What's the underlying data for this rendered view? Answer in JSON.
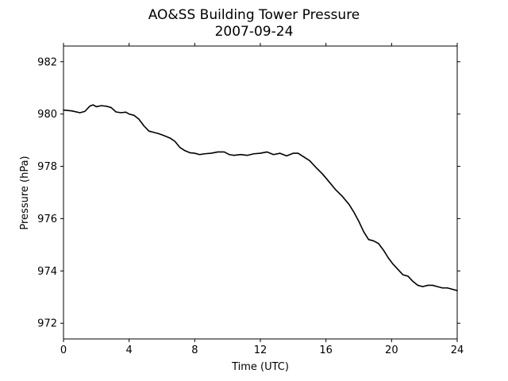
{
  "chart_data": {
    "type": "line",
    "title": "AO&SS Building Tower Pressure",
    "subtitle": "2007-09-24",
    "xlabel": "Time (UTC)",
    "ylabel": "Pressure (hPa)",
    "xlim": [
      0,
      24
    ],
    "ylim": [
      971.4,
      982.6
    ],
    "xticks": [
      0,
      4,
      8,
      12,
      16,
      20,
      24
    ],
    "xtick_labels": [
      "0",
      "4",
      "8",
      "12",
      "16",
      "20",
      "24"
    ],
    "yticks": [
      972,
      974,
      976,
      978,
      980,
      982
    ],
    "ytick_labels": [
      "972",
      "974",
      "976",
      "978",
      "980",
      "982"
    ],
    "grid": false,
    "line_color": "#000000",
    "series": [
      {
        "x": [
          0,
          0.5,
          1.0,
          1.3,
          1.6,
          1.8,
          2.0,
          2.3,
          2.6,
          2.9,
          3.2,
          3.5,
          3.8,
          4.0,
          4.3,
          4.6,
          4.9,
          5.2,
          5.5,
          5.8,
          6.1,
          6.5,
          6.8,
          7.1,
          7.4,
          7.7,
          8.0,
          8.3,
          8.6,
          9.0,
          9.4,
          9.8,
          10.1,
          10.4,
          10.8,
          11.2,
          11.6,
          12.0,
          12.4,
          12.8,
          13.2,
          13.6,
          14.0,
          14.3,
          14.6,
          15.0,
          15.4,
          15.8,
          16.2,
          16.6,
          17.0,
          17.4,
          17.7,
          18.0,
          18.3,
          18.6,
          18.9,
          19.2,
          19.5,
          19.8,
          20.1,
          20.4,
          20.7,
          21.0,
          21.3,
          21.6,
          21.9,
          22.2,
          22.5,
          22.8,
          23.1,
          23.4,
          23.7,
          24.0
        ],
        "y": [
          980.15,
          980.12,
          980.05,
          980.1,
          980.3,
          980.35,
          980.28,
          980.32,
          980.3,
          980.25,
          980.08,
          980.05,
          980.07,
          980.0,
          979.95,
          979.8,
          979.55,
          979.35,
          979.3,
          979.25,
          979.18,
          979.08,
          978.95,
          978.72,
          978.6,
          978.52,
          978.5,
          978.45,
          978.48,
          978.5,
          978.55,
          978.55,
          978.45,
          978.42,
          978.45,
          978.42,
          978.48,
          978.5,
          978.55,
          978.45,
          978.5,
          978.4,
          978.5,
          978.5,
          978.38,
          978.22,
          977.95,
          977.7,
          977.4,
          977.1,
          976.85,
          976.55,
          976.25,
          975.9,
          975.5,
          975.2,
          975.15,
          975.05,
          974.8,
          974.5,
          974.25,
          974.05,
          973.85,
          973.8,
          973.6,
          973.45,
          973.4,
          973.45,
          973.45,
          973.4,
          973.35,
          973.35,
          973.3,
          973.25
        ]
      }
    ]
  }
}
